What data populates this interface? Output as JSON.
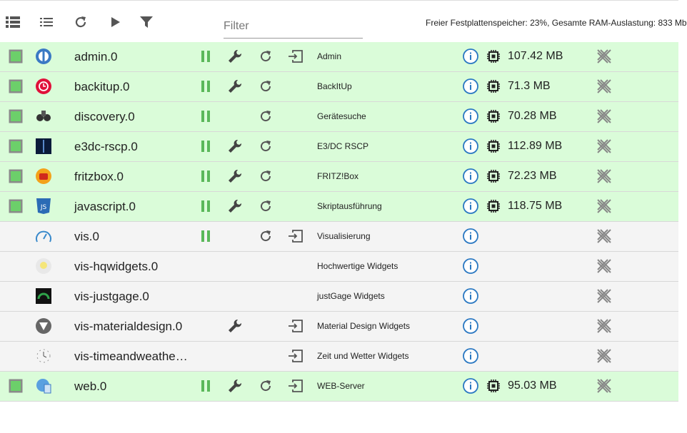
{
  "toolbar": {
    "filter_placeholder": "Filter",
    "status": "Freier Festplattenspeicher: 23%, Gesamte RAM-Auslastung: 833 Mb"
  },
  "instances": [
    {
      "name": "admin.0",
      "title": "Admin",
      "memory": "107.42 MB",
      "enabled": true,
      "pause": true,
      "config": true,
      "restart": true,
      "link": true
    },
    {
      "name": "backitup.0",
      "title": "BackItUp",
      "memory": "71.3 MB",
      "enabled": true,
      "pause": true,
      "config": true,
      "restart": true,
      "link": false
    },
    {
      "name": "discovery.0",
      "title": "Gerätesuche",
      "memory": "70.28 MB",
      "enabled": true,
      "pause": true,
      "config": false,
      "restart": true,
      "link": false
    },
    {
      "name": "e3dc-rscp.0",
      "title": "E3/DC RSCP",
      "memory": "112.89 MB",
      "enabled": true,
      "pause": true,
      "config": true,
      "restart": true,
      "link": false
    },
    {
      "name": "fritzbox.0",
      "title": "FRITZ!Box",
      "memory": "72.23 MB",
      "enabled": true,
      "pause": true,
      "config": true,
      "restart": true,
      "link": false
    },
    {
      "name": "javascript.0",
      "title": "Skriptausführung",
      "memory": "118.75 MB",
      "enabled": true,
      "pause": true,
      "config": true,
      "restart": true,
      "link": false
    },
    {
      "name": "vis.0",
      "title": "Visualisierung",
      "enabled": false,
      "pause": true,
      "config": false,
      "restart": true,
      "link": true
    },
    {
      "name": "vis-hqwidgets.0",
      "title": "Hochwertige Widgets",
      "enabled": false,
      "pause": false,
      "config": false,
      "restart": false,
      "link": false
    },
    {
      "name": "vis-justgage.0",
      "title": "justGage Widgets",
      "enabled": false,
      "pause": false,
      "config": false,
      "restart": false,
      "link": false
    },
    {
      "name": "vis-materialdesign.0",
      "title": "Material Design Widgets",
      "enabled": false,
      "pause": false,
      "config": true,
      "restart": false,
      "link": true
    },
    {
      "name": "vis-timeandweathe…",
      "title": "Zeit und Wetter Widgets",
      "enabled": false,
      "pause": false,
      "config": false,
      "restart": false,
      "link": true
    },
    {
      "name": "web.0",
      "title": "WEB-Server",
      "memory": "95.03 MB",
      "enabled": true,
      "pause": true,
      "config": true,
      "restart": true,
      "link": true
    }
  ]
}
